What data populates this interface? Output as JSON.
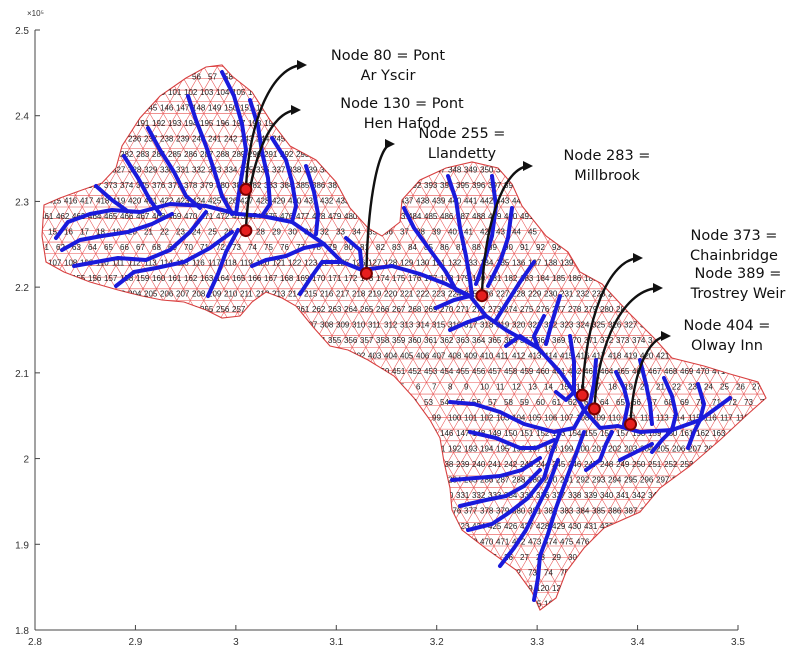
{
  "x_axis": {
    "ticks": [
      "2.8",
      "2.9",
      "3",
      "3.1",
      "3.2",
      "3.3",
      "3.4",
      "3.5"
    ],
    "range": [
      2.8,
      3.5
    ]
  },
  "y_axis": {
    "ticks": [
      "1.8",
      "1.9",
      "2",
      "2.1",
      "2.2",
      "2.3",
      "2.4",
      "2.5"
    ],
    "range": [
      1.8,
      2.5
    ],
    "exponent": "×10⁵"
  },
  "colors": {
    "mesh": "#e8504f",
    "river": "#1a1adb",
    "marker_fill": "#e61e1e",
    "marker_ring": "#7a0000",
    "arrow": "#111111"
  },
  "annotations": [
    {
      "node": 80,
      "line1": "Node 80 = Pont",
      "line2": "Ar Yscir",
      "x": 3.01,
      "y": 2.314
    },
    {
      "node": 130,
      "line1": "Node 130 = Pont",
      "line2": "Hen Hafod",
      "x": 3.01,
      "y": 2.266
    },
    {
      "node": 255,
      "line1": "Node 255 =",
      "line2": "Llandetty",
      "x": 3.13,
      "y": 2.216
    },
    {
      "node": 283,
      "line1": "Node 283 =",
      "line2": "Millbrook",
      "x": 3.245,
      "y": 2.19
    },
    {
      "node": 373,
      "line1": "Node 373 =",
      "line2": "Chainbridge",
      "x": 3.345,
      "y": 2.074
    },
    {
      "node": 389,
      "line1": "Node 389 =",
      "line2": "Trostrey Weir",
      "x": 3.357,
      "y": 2.058
    },
    {
      "node": 404,
      "line1": "Node 404 =",
      "line2": "Olway Inn",
      "x": 3.393,
      "y": 2.04
    }
  ],
  "chart_data": {
    "type": "scatter",
    "title": "",
    "xlabel": "",
    "ylabel": "",
    "xlim": [
      2.8,
      3.5
    ],
    "ylim": [
      1.8,
      2.5
    ],
    "y_multiplier": "×10⁵",
    "node_id_range": [
      1,
      492
    ],
    "highlighted_nodes": [
      80,
      130,
      255,
      283,
      373,
      389,
      404
    ],
    "series": [
      {
        "name": "",
        "x": [
          3.01,
          3.01,
          3.13,
          3.245,
          3.345,
          3.357,
          3.393
        ],
        "y": [
          2.314,
          2.266,
          2.216,
          2.19,
          2.074,
          2.058,
          2.04
        ]
      }
    ]
  }
}
